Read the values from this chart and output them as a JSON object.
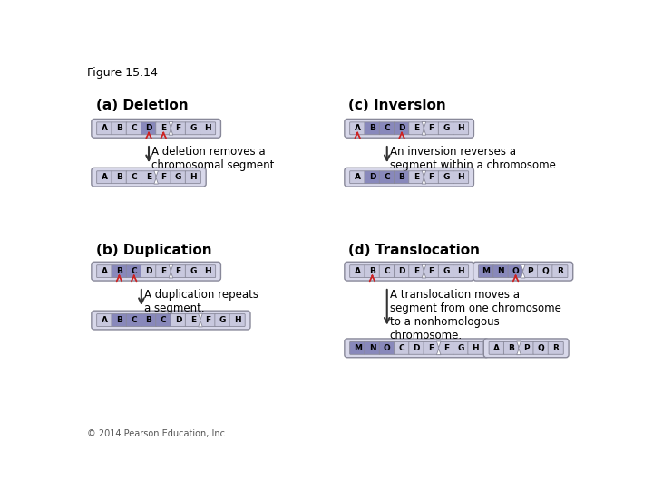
{
  "title": "Figure 15.14",
  "bg_color": "#ffffff",
  "normal_fill": "#c8c8de",
  "highlight_fill": "#8888bb",
  "light_segment": "#d8d8ea",
  "arrow_red": "#cc2222",
  "arrow_dark": "#333333",
  "border_color": "#888899",
  "sections": {
    "a_title": "(a) Deletion",
    "b_title": "(b) Duplication",
    "c_title": "(c) Inversion",
    "d_title": "(d) Translocation"
  },
  "a_desc": "A deletion removes a\nchromosomal segment.",
  "b_desc": "A duplication repeats\na segment.",
  "c_desc": "An inversion reverses a\nsegment within a chromosome.",
  "d_desc": "A translocation moves a\nsegment from one chromosome\nto a nonhomologous\nchromosome.",
  "copyright": "© 2014 Pearson Education, Inc."
}
